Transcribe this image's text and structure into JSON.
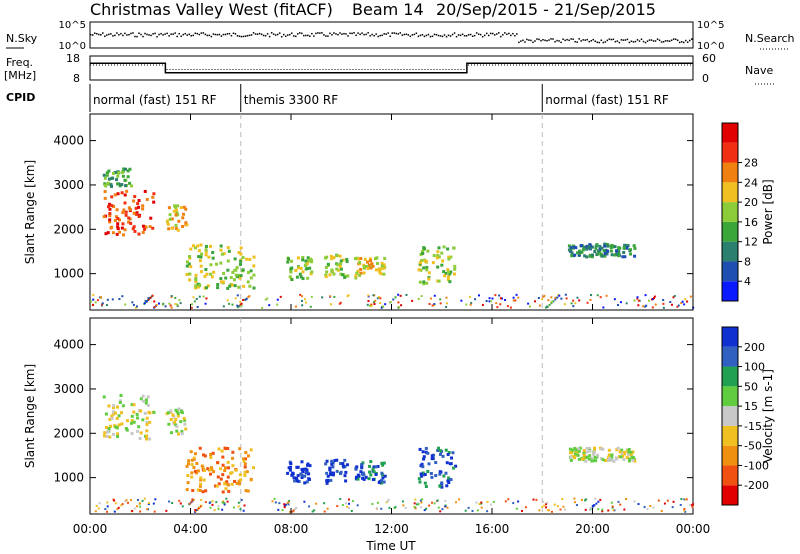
{
  "header": {
    "title": "Christmas Valley West (fitACF)",
    "beam": "Beam 14",
    "date_range": "20/Sep/2015 - 21/Sep/2015"
  },
  "params": {
    "nsky_label": "N.Sky",
    "nsky_ticks": [
      "10^5",
      "10^0"
    ],
    "nsearch_label": "N.Search",
    "nsearch_ticks": [
      "10^5",
      "10^0"
    ],
    "freq_label": "Freq.",
    "freq_unit": "[MHz]",
    "freq_ticks": [
      "18",
      "8"
    ],
    "nave_label": "Nave",
    "nave_ticks": [
      "60",
      "0"
    ],
    "cpid_label": "CPID",
    "cpid_segments": [
      {
        "label": "normal (fast) 151 RF",
        "start": 0,
        "end": 6
      },
      {
        "label": "themis 3300 RF",
        "start": 6,
        "end": 18
      },
      {
        "label": "normal (fast) 151 RF",
        "start": 18,
        "end": 24
      }
    ],
    "freq_line": [
      [
        0,
        15
      ],
      [
        3,
        15
      ],
      [
        3,
        11
      ],
      [
        15,
        11
      ],
      [
        15,
        15
      ],
      [
        24,
        15
      ]
    ],
    "nave_line": [
      [
        0,
        10
      ],
      [
        3,
        10
      ],
      [
        3,
        7
      ],
      [
        15,
        7
      ],
      [
        15,
        10
      ],
      [
        24,
        10
      ]
    ]
  },
  "chart_data": [
    {
      "type": "heatmap",
      "name": "power",
      "ylabel": "Slant Range [km]",
      "yticks": [
        "1000",
        "2000",
        "3000",
        "4000"
      ],
      "ylim": [
        180,
        4600
      ],
      "xlim": [
        0,
        24
      ],
      "colorbar": {
        "label": "Power [dB]",
        "ticks": [
          "4",
          "8",
          "12",
          "16",
          "20",
          "24",
          "28"
        ],
        "colors": [
          "#0a1aff",
          "#1e4fb0",
          "#2a7f6e",
          "#3aa63a",
          "#8ccc38",
          "#f0c020",
          "#f08010",
          "#f03010",
          "#e00000"
        ]
      },
      "regions": [
        {
          "t0": 0.5,
          "t1": 2.5,
          "r0": 1900,
          "r1": 2900,
          "level": 7
        },
        {
          "t0": 0.5,
          "t1": 1.6,
          "r0": 3000,
          "r1": 3400,
          "level": 3
        },
        {
          "t0": 3.0,
          "t1": 3.8,
          "r0": 2000,
          "r1": 2600,
          "level": 5
        },
        {
          "t0": 3.8,
          "t1": 6.5,
          "r0": 700,
          "r1": 1700,
          "level": 4
        },
        {
          "t0": 7.8,
          "t1": 8.8,
          "r0": 900,
          "r1": 1400,
          "level": 4
        },
        {
          "t0": 9.3,
          "t1": 10.2,
          "r0": 900,
          "r1": 1450,
          "level": 4
        },
        {
          "t0": 10.5,
          "t1": 11.7,
          "r0": 900,
          "r1": 1400,
          "level": 5
        },
        {
          "t0": 13.0,
          "t1": 14.5,
          "r0": 800,
          "r1": 1700,
          "level": 4
        },
        {
          "t0": 19.0,
          "t1": 21.7,
          "r0": 1400,
          "r1": 1700,
          "level": 2
        }
      ]
    },
    {
      "type": "heatmap",
      "name": "velocity",
      "ylabel": "Slant Range [km]",
      "yticks": [
        "1000",
        "2000",
        "3000",
        "4000"
      ],
      "ylim": [
        180,
        4600
      ],
      "xlim": [
        0,
        24
      ],
      "xlabel": "Time UT",
      "xticks": [
        "00:00",
        "04:00",
        "08:00",
        "12:00",
        "16:00",
        "20:00",
        "00:00"
      ],
      "colorbar": {
        "label": "Velocity [m s-1]",
        "ticks": [
          "200",
          "100",
          "50",
          "15",
          "-15",
          "-50",
          "-100",
          "-200"
        ],
        "colors": [
          "#1030d0",
          "#3060c0",
          "#20a050",
          "#60cc40",
          "#c8c8c8",
          "#f0c020",
          "#f09010",
          "#f05010",
          "#e00000"
        ]
      },
      "regions": [
        {
          "t0": 0.5,
          "t1": 2.5,
          "r0": 1900,
          "r1": 2900,
          "level": 4
        },
        {
          "t0": 3.0,
          "t1": 3.8,
          "r0": 2000,
          "r1": 2600,
          "level": 4
        },
        {
          "t0": 3.8,
          "t1": 6.5,
          "r0": 700,
          "r1": 1700,
          "level": 6
        },
        {
          "t0": 7.8,
          "t1": 8.8,
          "r0": 900,
          "r1": 1400,
          "level": 0
        },
        {
          "t0": 9.3,
          "t1": 10.2,
          "r0": 900,
          "r1": 1450,
          "level": 0
        },
        {
          "t0": 10.5,
          "t1": 11.7,
          "r0": 900,
          "r1": 1400,
          "level": 1
        },
        {
          "t0": 13.0,
          "t1": 14.5,
          "r0": 800,
          "r1": 1700,
          "level": 1
        },
        {
          "t0": 19.0,
          "t1": 21.7,
          "r0": 1400,
          "r1": 1700,
          "level": 4
        }
      ]
    }
  ]
}
